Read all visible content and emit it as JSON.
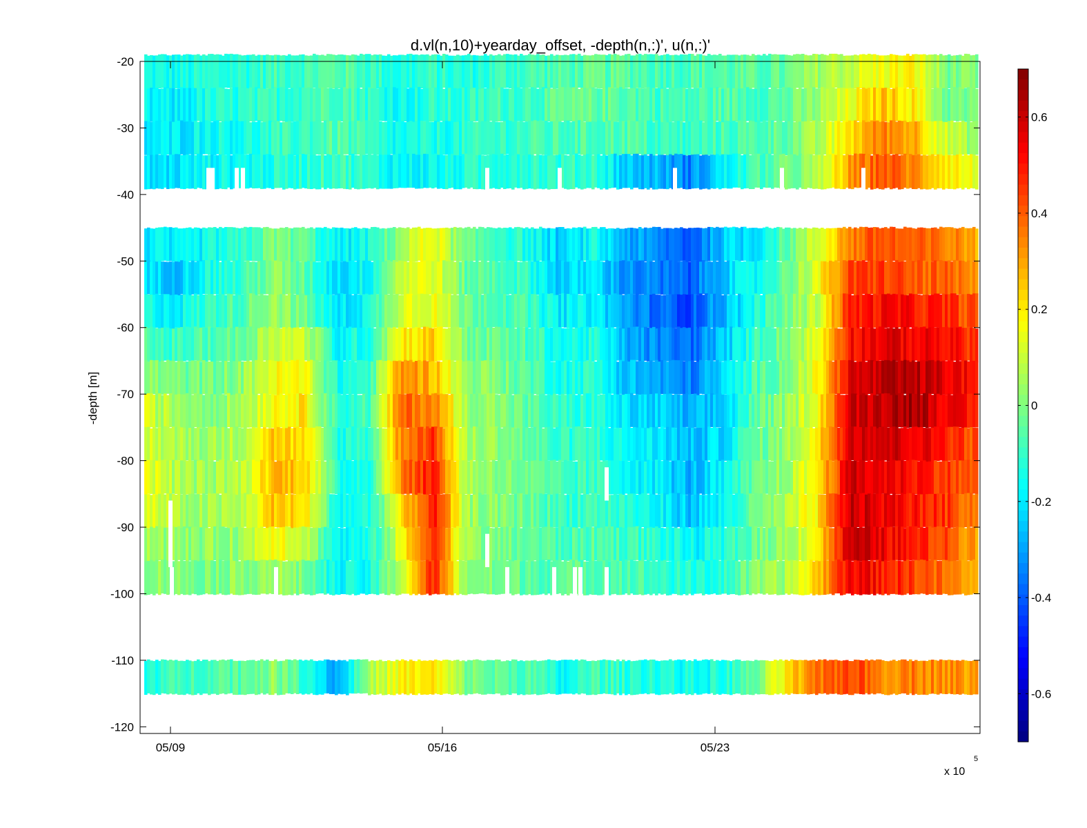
{
  "chart_data": {
    "type": "heatmap",
    "title": "d.vl(n,10)+yearday_offset, -depth(n,:)', u(n,:)'",
    "xlabel": "",
    "ylabel": "-depth [m]",
    "x_tick_labels": [
      "05/09",
      "05/16",
      "05/23"
    ],
    "x_exponent_label": "x 10",
    "x_exponent_power": "5",
    "y_ticks": [
      -20,
      -30,
      -40,
      -50,
      -60,
      -70,
      -80,
      -90,
      -100,
      -110,
      -120
    ],
    "ylim": [
      -121,
      -20
    ],
    "colorbar": {
      "colormap": "jet",
      "clim": [
        -0.7,
        0.7
      ],
      "ticks": [
        0.6,
        0.4,
        0.2,
        0,
        -0.2,
        -0.4,
        -0.6
      ],
      "tick_labels": [
        "0.6",
        "0.4",
        "0.2",
        "0",
        "-0.2",
        "-0.4",
        "-0.6"
      ]
    },
    "depth_bins": [
      {
        "center": -21.5,
        "values": [
          -0.15,
          -0.16,
          -0.13,
          -0.12,
          -0.09,
          -0.08,
          -0.05,
          -0.09,
          -0.14,
          -0.11,
          -0.14,
          -0.1,
          -0.08,
          -0.07,
          -0.05,
          -0.05,
          -0.07,
          -0.07,
          -0.06,
          -0.06,
          -0.05,
          0.05,
          0.1,
          0.16,
          0.18,
          0.0,
          -0.02
        ]
      },
      {
        "center": -26.5,
        "values": [
          -0.19,
          -0.2,
          -0.14,
          -0.13,
          -0.11,
          -0.08,
          -0.05,
          -0.11,
          -0.16,
          -0.12,
          -0.12,
          -0.09,
          -0.08,
          -0.05,
          -0.04,
          -0.05,
          -0.08,
          -0.09,
          -0.06,
          -0.07,
          -0.05,
          0.03,
          0.14,
          0.26,
          0.2,
          -0.02,
          -0.03
        ]
      },
      {
        "center": -31.5,
        "values": [
          -0.2,
          -0.2,
          -0.15,
          -0.15,
          -0.12,
          -0.09,
          -0.06,
          -0.12,
          -0.17,
          -0.14,
          -0.13,
          -0.1,
          -0.09,
          -0.08,
          -0.07,
          -0.06,
          -0.1,
          -0.11,
          -0.08,
          -0.07,
          -0.03,
          0.05,
          0.22,
          0.35,
          0.3,
          0.1,
          0.02
        ]
      },
      {
        "center": -36.5,
        "values": [
          -0.22,
          -0.21,
          -0.17,
          -0.16,
          -0.14,
          -0.11,
          -0.08,
          -0.13,
          -0.18,
          -0.17,
          -0.14,
          -0.11,
          -0.1,
          -0.12,
          -0.09,
          -0.25,
          -0.27,
          -0.35,
          -0.2,
          -0.09,
          -0.03,
          0.05,
          0.3,
          0.42,
          0.33,
          0.22,
          0.12
        ]
      },
      {
        "center": -47.5,
        "values": [
          -0.19,
          -0.22,
          -0.16,
          -0.13,
          0.0,
          -0.05,
          -0.2,
          -0.15,
          0.05,
          0.18,
          -0.05,
          -0.08,
          -0.15,
          -0.25,
          -0.16,
          -0.28,
          -0.35,
          -0.4,
          -0.25,
          -0.2,
          -0.05,
          0.12,
          0.35,
          0.42,
          0.38,
          0.35,
          0.3
        ]
      },
      {
        "center": -52.5,
        "values": [
          -0.22,
          -0.24,
          -0.14,
          -0.11,
          0.02,
          -0.06,
          -0.22,
          -0.16,
          0.12,
          0.15,
          -0.04,
          -0.06,
          -0.12,
          -0.25,
          -0.2,
          -0.32,
          -0.36,
          -0.4,
          -0.24,
          -0.18,
          -0.03,
          0.15,
          0.42,
          0.45,
          0.4,
          0.38,
          0.3
        ]
      },
      {
        "center": -57.5,
        "values": [
          -0.15,
          -0.18,
          -0.1,
          -0.06,
          0.06,
          -0.04,
          -0.22,
          -0.15,
          0.14,
          0.16,
          -0.02,
          -0.05,
          -0.1,
          -0.2,
          -0.18,
          -0.3,
          -0.38,
          -0.42,
          -0.28,
          -0.15,
          -0.02,
          0.1,
          0.48,
          0.52,
          0.5,
          0.46,
          0.4
        ]
      },
      {
        "center": -62.5,
        "values": [
          -0.08,
          -0.1,
          -0.06,
          -0.04,
          0.12,
          0.1,
          -0.18,
          -0.12,
          0.2,
          0.24,
          -0.01,
          -0.04,
          -0.08,
          -0.16,
          -0.14,
          -0.28,
          -0.34,
          -0.38,
          -0.26,
          -0.1,
          0.0,
          0.14,
          0.52,
          0.56,
          0.54,
          0.52,
          0.45
        ]
      },
      {
        "center": -67.5,
        "values": [
          0.02,
          -0.02,
          -0.02,
          0.02,
          0.16,
          0.16,
          -0.15,
          -0.1,
          0.34,
          0.28,
          0.03,
          0.0,
          -0.06,
          -0.14,
          -0.12,
          -0.25,
          -0.3,
          -0.35,
          -0.24,
          -0.08,
          0.0,
          0.16,
          0.56,
          0.6,
          0.62,
          0.56,
          0.5
        ]
      },
      {
        "center": -72.5,
        "values": [
          0.1,
          0.05,
          0.02,
          0.06,
          0.18,
          0.2,
          -0.12,
          -0.08,
          0.38,
          0.36,
          0.05,
          0.02,
          -0.06,
          -0.12,
          -0.12,
          -0.22,
          -0.24,
          -0.3,
          -0.25,
          -0.06,
          0.02,
          0.18,
          0.58,
          0.62,
          0.66,
          0.55,
          0.45
        ]
      },
      {
        "center": -77.5,
        "values": [
          0.12,
          0.06,
          0.04,
          0.08,
          0.26,
          0.2,
          -0.14,
          -0.1,
          0.36,
          0.45,
          0.05,
          0.03,
          -0.05,
          -0.12,
          -0.1,
          -0.18,
          -0.2,
          -0.27,
          -0.22,
          -0.05,
          0.03,
          0.2,
          0.6,
          0.6,
          0.56,
          0.5,
          0.4
        ]
      },
      {
        "center": -82.5,
        "values": [
          0.16,
          0.06,
          0.04,
          0.08,
          0.28,
          0.26,
          -0.15,
          -0.12,
          0.36,
          0.5,
          0.06,
          0.02,
          -0.04,
          -0.1,
          -0.1,
          -0.15,
          -0.2,
          -0.28,
          -0.2,
          -0.05,
          0.04,
          0.2,
          0.58,
          0.55,
          0.52,
          0.45,
          0.38
        ]
      },
      {
        "center": -87.5,
        "values": [
          0.14,
          0.05,
          0.04,
          0.06,
          0.26,
          0.2,
          -0.16,
          -0.14,
          0.2,
          0.5,
          0.05,
          0.0,
          -0.03,
          -0.1,
          -0.08,
          -0.12,
          -0.18,
          -0.25,
          -0.18,
          -0.04,
          0.05,
          0.2,
          0.6,
          0.55,
          0.5,
          0.45,
          0.35
        ]
      },
      {
        "center": -92.5,
        "values": [
          0.06,
          0.02,
          0.02,
          0.04,
          0.2,
          0.1,
          -0.18,
          -0.16,
          0.15,
          0.5,
          0.04,
          -0.02,
          -0.04,
          -0.08,
          -0.06,
          -0.08,
          -0.12,
          -0.18,
          -0.15,
          -0.03,
          0.04,
          0.2,
          0.6,
          0.55,
          0.48,
          0.42,
          0.3
        ]
      },
      {
        "center": -97.5,
        "values": [
          0.04,
          0.0,
          0.0,
          0.02,
          0.05,
          -0.02,
          -0.18,
          -0.16,
          0.1,
          0.48,
          0.02,
          -0.02,
          -0.04,
          -0.06,
          -0.04,
          -0.06,
          -0.1,
          -0.14,
          -0.12,
          0.0,
          0.05,
          0.25,
          0.55,
          0.5,
          0.44,
          0.36,
          0.25
        ]
      },
      {
        "center": -112.5,
        "values": [
          -0.12,
          -0.1,
          -0.05,
          -0.05,
          0.02,
          -0.1,
          -0.3,
          0.05,
          0.18,
          0.2,
          0.0,
          -0.05,
          -0.06,
          -0.18,
          -0.08,
          -0.12,
          -0.12,
          -0.16,
          -0.14,
          -0.05,
          0.2,
          0.35,
          0.45,
          0.34,
          0.36,
          0.33,
          0.3
        ]
      }
    ]
  }
}
